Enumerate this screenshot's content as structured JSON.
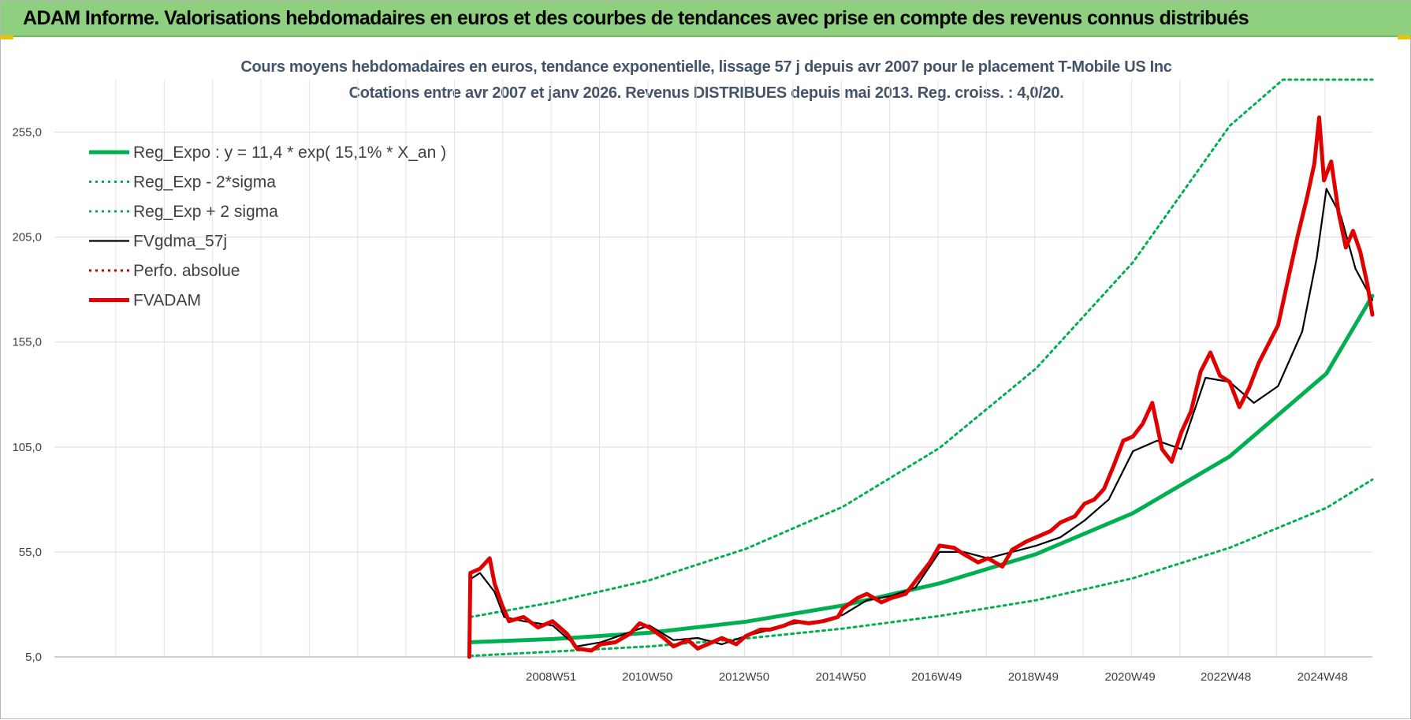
{
  "header": {
    "title": "ADAM Informe. Valorisations hebdomadaires en euros et des courbes de tendances avec prise en compte des revenus connus distribués"
  },
  "chart_data": {
    "type": "line",
    "title": "Cours moyens hebdomadaires en euros, tendance exponentielle, lissage 57 j depuis avr 2007 pour le placement T-Mobile US Inc",
    "subtitle": "Cotations entre avr 2007 et janv 2026. Revenus DISTRIBUES depuis mai 2013. Reg. croiss. : 4,0/20.",
    "xlabel": "",
    "ylabel": "",
    "ylim": [
      5,
      280
    ],
    "xlim": [
      1998.7,
      2025.95
    ],
    "y_ticks": [
      "5,0",
      "55,0",
      "105,0",
      "155,0",
      "205,0",
      "255,0"
    ],
    "y_tick_values": [
      5,
      55,
      105,
      155,
      205,
      255
    ],
    "x_ticks": [
      "2008W51",
      "2010W50",
      "2012W50",
      "2014W50",
      "2016W49",
      "2018W49",
      "2020W49",
      "2022W48",
      "2024W48"
    ],
    "x_tick_values": [
      2008.97,
      2010.96,
      2012.96,
      2014.96,
      2016.94,
      2018.94,
      2020.94,
      2022.92,
      2024.92
    ],
    "grid": true,
    "legend_position": "top-left",
    "series": [
      {
        "name": "Reg_Expo : y = 11,4 * exp( 15,1% *  X_an )",
        "color": "#00b050",
        "style": "solid-thick",
        "x": [
          2007.3,
          2009,
          2011,
          2013,
          2015,
          2017,
          2019,
          2021,
          2023,
          2025,
          2025.95
        ],
        "values": [
          12.0,
          13.5,
          16.5,
          21.8,
          29.5,
          40.0,
          54.0,
          73.5,
          100.5,
          140.0,
          177.0
        ]
      },
      {
        "name": "Reg_Exp - 2*sigma",
        "color": "#00b050",
        "style": "dotted",
        "x": [
          2007.3,
          2009,
          2011,
          2013,
          2015,
          2017,
          2019,
          2021,
          2023,
          2025,
          2025.95
        ],
        "values": [
          5.5,
          7.5,
          10.0,
          13.8,
          18.5,
          24.5,
          32.0,
          42.5,
          57.0,
          76.0,
          89.5
        ]
      },
      {
        "name": "Reg_Exp + 2 sigma",
        "color": "#00b050",
        "style": "dotted",
        "x": [
          2007.3,
          2009,
          2011,
          2013,
          2015,
          2017,
          2019,
          2021,
          2023,
          2024.1,
          2025.95
        ],
        "values": [
          24.0,
          31.0,
          41.5,
          56.5,
          76.5,
          104.5,
          142.5,
          193.0,
          258.0,
          280.0,
          280.0
        ]
      },
      {
        "name": "FVgdma_57j",
        "color": "#000000",
        "style": "solid",
        "x": [
          2007.3,
          2007.5,
          2007.8,
          2008.0,
          2008.4,
          2009.0,
          2009.5,
          2010.0,
          2010.5,
          2011.0,
          2011.5,
          2012.0,
          2012.5,
          2013.0,
          2013.5,
          2014.0,
          2014.5,
          2015.0,
          2015.5,
          2016.0,
          2016.5,
          2017.0,
          2017.5,
          2018.0,
          2018.5,
          2019.0,
          2019.5,
          2020.0,
          2020.5,
          2021.0,
          2021.5,
          2022.0,
          2022.5,
          2023.0,
          2023.5,
          2024.0,
          2024.5,
          2024.8,
          2025.0,
          2025.3,
          2025.6,
          2025.95
        ],
        "values": [
          42.0,
          45.0,
          36.0,
          24.0,
          22.0,
          20.0,
          10.0,
          12.0,
          16.0,
          20.0,
          13.0,
          14.0,
          11.0,
          15.0,
          18.0,
          21.0,
          22.0,
          25.0,
          32.0,
          34.0,
          38.0,
          55.0,
          55.0,
          52.0,
          55.0,
          58.0,
          62.0,
          70.0,
          80.0,
          103.0,
          108.0,
          104.0,
          138.0,
          136.0,
          126.0,
          134.0,
          160.0,
          195.0,
          228.0,
          215.0,
          190.0,
          175.0
        ]
      },
      {
        "name": "Perfo. absolue",
        "color": "#c00000",
        "style": "dotted",
        "x": [],
        "values": []
      },
      {
        "name": "FVADAM",
        "color": "#e00000",
        "style": "solid-thick",
        "x": [
          2007.28,
          2007.3,
          2007.5,
          2007.7,
          2007.8,
          2007.95,
          2008.1,
          2008.4,
          2008.7,
          2009.0,
          2009.3,
          2009.5,
          2009.8,
          2010.0,
          2010.3,
          2010.6,
          2010.8,
          2011.0,
          2011.3,
          2011.5,
          2011.8,
          2012.0,
          2012.3,
          2012.5,
          2012.8,
          2013.0,
          2013.3,
          2013.5,
          2013.8,
          2014.0,
          2014.3,
          2014.6,
          2014.9,
          2015.0,
          2015.3,
          2015.5,
          2015.8,
          2016.0,
          2016.3,
          2016.6,
          2016.8,
          2017.0,
          2017.3,
          2017.5,
          2017.8,
          2018.0,
          2018.3,
          2018.5,
          2018.8,
          2019.0,
          2019.3,
          2019.5,
          2019.8,
          2020.0,
          2020.2,
          2020.4,
          2020.6,
          2020.8,
          2021.0,
          2021.2,
          2021.4,
          2021.6,
          2021.8,
          2022.0,
          2022.2,
          2022.4,
          2022.6,
          2022.8,
          2023.0,
          2023.2,
          2023.4,
          2023.6,
          2023.8,
          2024.0,
          2024.2,
          2024.4,
          2024.6,
          2024.75,
          2024.85,
          2024.95,
          2025.1,
          2025.25,
          2025.4,
          2025.55,
          2025.7,
          2025.85,
          2025.95
        ],
        "values": [
          5.0,
          45.0,
          47.0,
          52.0,
          40.0,
          30.0,
          22.0,
          24.0,
          19.0,
          22.0,
          16.0,
          9.0,
          8.0,
          11.0,
          12.0,
          16.0,
          21.0,
          19.0,
          14.0,
          10.0,
          13.0,
          9.0,
          12.0,
          14.0,
          11.0,
          15.0,
          18.0,
          18.0,
          20.0,
          22.0,
          21.0,
          22.0,
          24.0,
          28.0,
          33.0,
          35.0,
          31.0,
          33.0,
          35.0,
          44.0,
          50.0,
          58.0,
          57.0,
          54.0,
          50.0,
          52.0,
          48.0,
          56.0,
          60.0,
          62.0,
          65.0,
          69.0,
          72.0,
          78.0,
          80.0,
          85.0,
          96.0,
          108.0,
          110.0,
          116.0,
          126.0,
          104.0,
          98.0,
          112.0,
          122.0,
          141.0,
          150.0,
          139.0,
          136.0,
          124.0,
          133.0,
          145.0,
          154.0,
          163.0,
          184.0,
          205.0,
          224.0,
          240.0,
          262.0,
          232.0,
          241.0,
          217.0,
          200.0,
          208.0,
          198.0,
          182.0,
          168.0
        ]
      }
    ]
  }
}
